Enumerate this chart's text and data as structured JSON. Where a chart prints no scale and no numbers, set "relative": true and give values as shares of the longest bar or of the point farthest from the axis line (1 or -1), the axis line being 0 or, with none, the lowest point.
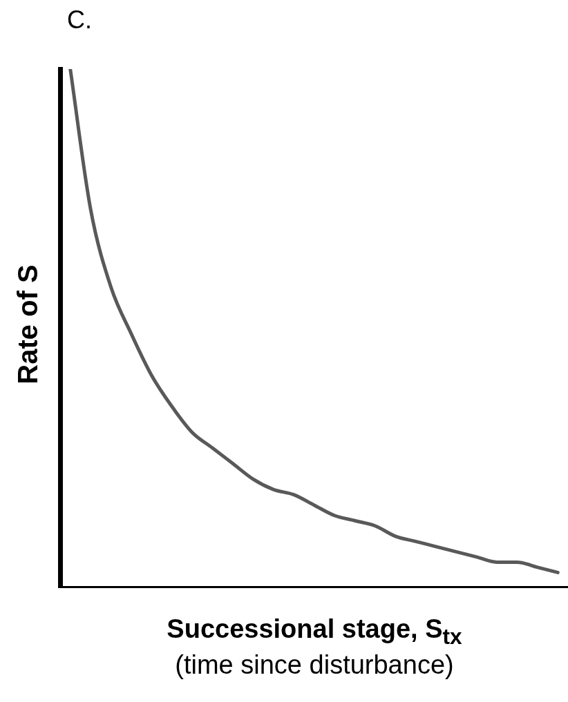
{
  "chart_data": {
    "type": "line",
    "title": "C.",
    "xlabel": "Successional stage, S$_{tx}$\n(time since disturbance)",
    "ylabel": "Rate of S",
    "relative": true,
    "categories": [
      null,
      null,
      null,
      null,
      null,
      null,
      null,
      null,
      null,
      null,
      null,
      null,
      null,
      null,
      null,
      null,
      null,
      null,
      null,
      null,
      null,
      null,
      null,
      null,
      null
    ],
    "series": [
      {
        "color": "#595959",
        "values": [
          1,
          0.73,
          0.58,
          0.49,
          0.41,
          0.35,
          0.3,
          0.27,
          0.24,
          0.21,
          0.19,
          0.18,
          0.16,
          0.14,
          0.13,
          0.12,
          0.1,
          0.09,
          0.08,
          0.07,
          0.06,
          0.05,
          0.05,
          0.04,
          0.03
        ]
      }
    ],
    "grid": false,
    "legend": false
  }
}
